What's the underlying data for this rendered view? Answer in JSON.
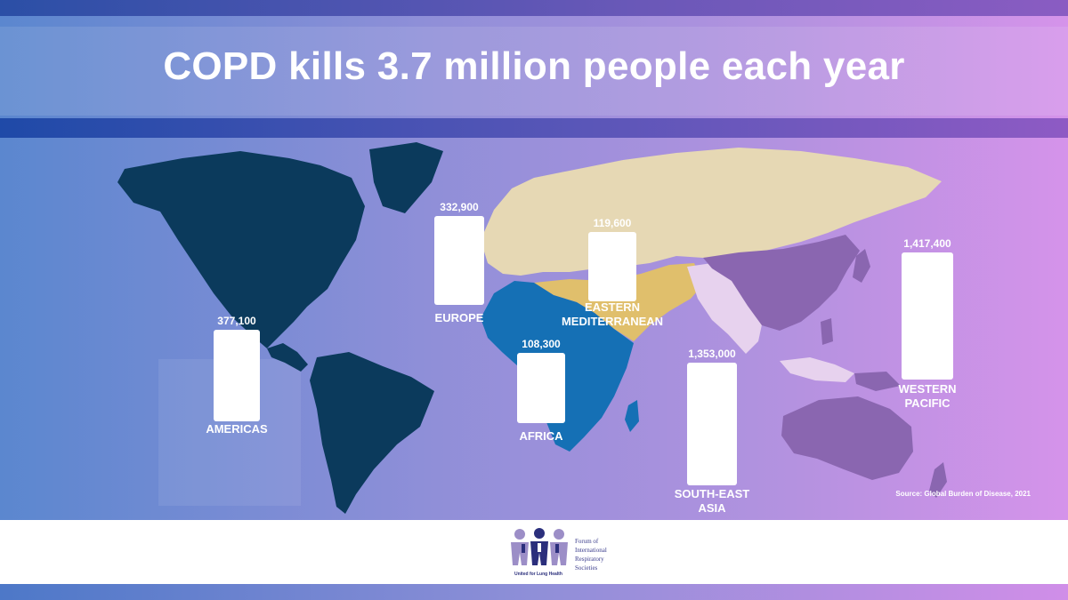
{
  "title": "COPD kills 3.7 million people each year",
  "source": "Source: Global Burden of Disease, 2021",
  "colors": {
    "americas": "#0b3a5c",
    "africa": "#1570b5",
    "europe_eastern_med_land": "#e6d8b4",
    "eastern_mediterranean": "#e0bf6c",
    "western_pacific": "#8a66b0",
    "south_east_asia": "#e7d2ee"
  },
  "chart_data": {
    "type": "bar",
    "title": "COPD kills 3.7 million people each year",
    "categories": [
      "AMERICAS",
      "EUROPE",
      "AFRICA",
      "EASTERN MEDITERRANEAN",
      "SOUTH-EAST ASIA",
      "WESTERN PACIFIC"
    ],
    "value_labels": [
      "377,100",
      "332,900",
      "108,300",
      "119,600",
      "1,353,000",
      "1,417,400"
    ],
    "values": [
      377100,
      332900,
      108300,
      119600,
      1353000,
      1417400
    ]
  },
  "logo": {
    "lines": [
      "Forum of",
      "International",
      "Respiratory",
      "Societies"
    ],
    "tagline": "United for Lung Health"
  }
}
